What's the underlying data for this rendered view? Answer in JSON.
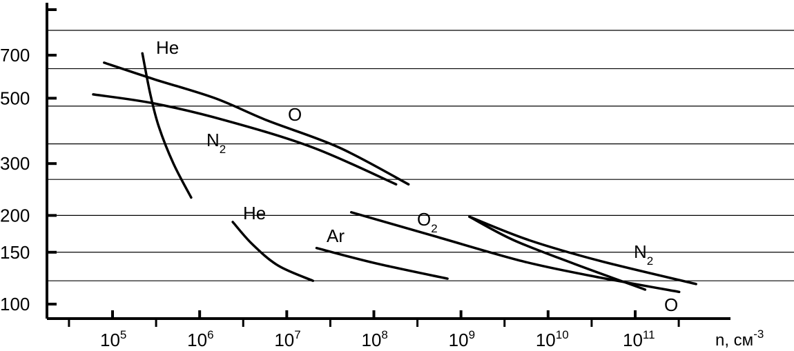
{
  "chart_data": {
    "type": "line",
    "title": "",
    "xlabel": "n, см",
    "xlabel_exponent": "-3",
    "ylabel": "",
    "x_scale": "log",
    "y_scale": "log",
    "xlim": [
      20000,
      600000000000
    ],
    "ylim": [
      87,
      1000
    ],
    "grid": "horizontal",
    "x_ticks": [
      {
        "value": 100000,
        "base": "10",
        "exp": "5"
      },
      {
        "value": 1000000,
        "base": "10",
        "exp": "6"
      },
      {
        "value": 10000000,
        "base": "10",
        "exp": "7"
      },
      {
        "value": 100000000,
        "base": "10",
        "exp": "8"
      },
      {
        "value": 1000000000,
        "base": "10",
        "exp": "9"
      },
      {
        "value": 10000000000,
        "base": "10",
        "exp": "10"
      },
      {
        "value": 100000000000,
        "base": "10",
        "exp": "11"
      }
    ],
    "y_ticks": [
      {
        "value": 100,
        "label": "100"
      },
      {
        "value": 150,
        "label": "150"
      },
      {
        "value": 200,
        "label": "200"
      },
      {
        "value": 300,
        "label": "300"
      },
      {
        "value": 500,
        "label": "500"
      },
      {
        "value": 700,
        "label": "700"
      }
    ],
    "gridlines_y": [
      120,
      150,
      200,
      265,
      350,
      470,
      630,
      850
    ],
    "series": [
      {
        "name": "He",
        "label_sub": "",
        "points": [
          [
            220000,
            710
          ],
          [
            270000,
            520
          ],
          [
            340000,
            400
          ],
          [
            500000,
            300
          ],
          [
            800000,
            230
          ]
        ]
      },
      {
        "name": "O",
        "label_sub": "",
        "points": [
          [
            80000,
            660
          ],
          [
            300000,
            580
          ],
          [
            1500000,
            500
          ],
          [
            6000000,
            420
          ],
          [
            40000000,
            340
          ],
          [
            250000000,
            255
          ]
        ]
      },
      {
        "name": "N",
        "label_sub": "2",
        "points": [
          [
            60000,
            515
          ],
          [
            300000,
            480
          ],
          [
            2000000,
            420
          ],
          [
            20000000,
            340
          ],
          [
            180000000,
            255
          ]
        ]
      },
      {
        "name": "He",
        "label_sub": "",
        "points": [
          [
            2400000,
            190
          ],
          [
            4000000,
            160
          ],
          [
            8000000,
            135
          ],
          [
            20000000,
            120
          ]
        ]
      },
      {
        "name": "Ar",
        "label_sub": "",
        "points": [
          [
            22000000,
            155
          ],
          [
            100000000,
            138
          ],
          [
            700000000,
            122
          ]
        ]
      },
      {
        "name": "O",
        "label_sub": "2",
        "points": [
          [
            55000000,
            205
          ],
          [
            500000000,
            170
          ],
          [
            5000000000,
            140
          ],
          [
            30000000000,
            125
          ],
          [
            320000000000,
            110
          ]
        ]
      },
      {
        "name": "N",
        "label_sub": "2",
        "points": [
          [
            1250000000,
            198
          ],
          [
            6000000000,
            165
          ],
          [
            40000000000,
            140
          ],
          [
            500000000000,
            117
          ]
        ]
      },
      {
        "name": "O",
        "label_sub": "",
        "points": [
          [
            1250000000,
            198
          ],
          [
            4000000000,
            165
          ],
          [
            20000000000,
            137
          ],
          [
            130000000000,
            112
          ]
        ]
      }
    ]
  }
}
